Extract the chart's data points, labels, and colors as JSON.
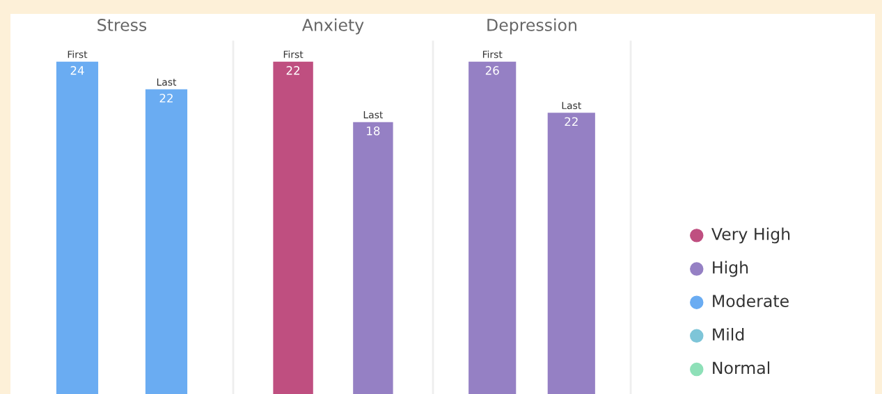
{
  "chart_data": [
    {
      "type": "bar",
      "title": "Stress",
      "categories": [
        "First",
        "Last"
      ],
      "data_labels": true,
      "values": [
        24,
        22
      ],
      "colors": [
        "#6aacf2",
        "#6aacf2"
      ]
    },
    {
      "type": "bar",
      "title": "Anxiety",
      "categories": [
        "First",
        "Last"
      ],
      "data_labels": true,
      "values": [
        22,
        18
      ],
      "colors": [
        "#bf4f80",
        "#9580c4"
      ]
    },
    {
      "type": "bar",
      "title": "Depression",
      "categories": [
        "First",
        "Last"
      ],
      "data_labels": true,
      "values": [
        26,
        22
      ],
      "colors": [
        "#9580c4",
        "#9580c4"
      ]
    },
    {
      "type": "other",
      "categories": [
        "Very High",
        "High",
        "Moderate",
        "Mild",
        "Normal"
      ],
      "colors": [
        "#bf4f80",
        "#9580c4",
        "#6aacf2",
        "#7ec5d8",
        "#8ee0b8"
      ]
    }
  ]
}
